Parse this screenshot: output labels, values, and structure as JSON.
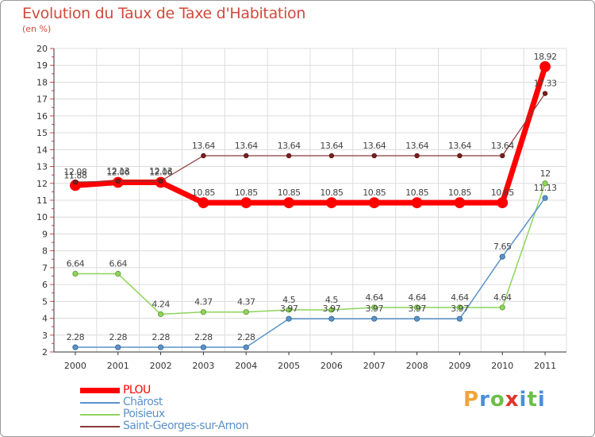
{
  "chart_data": {
    "type": "line",
    "title": "Evolution du Taux de Taxe d'Habitation",
    "subtitle": "(en %)",
    "categories": [
      "2000",
      "2001",
      "2002",
      "2003",
      "2004",
      "2005",
      "2006",
      "2007",
      "2008",
      "2009",
      "2010",
      "2011"
    ],
    "ylim": [
      2,
      20
    ],
    "yticks": [
      2,
      3,
      4,
      5,
      6,
      7,
      8,
      9,
      10,
      11,
      12,
      13,
      14,
      15,
      16,
      17,
      18,
      19,
      20
    ],
    "grid": true,
    "series": [
      {
        "name": "PLOU",
        "color": "#ff0000",
        "values": [
          11.88,
          12.06,
          12.06,
          10.85,
          10.85,
          10.85,
          10.85,
          10.85,
          10.85,
          10.85,
          10.85,
          18.92
        ],
        "labels": [
          "11.88",
          "12.06",
          "12.06",
          "10.85",
          "10.85",
          "10.85",
          "10.85",
          "10.85",
          "10.85",
          "10.85",
          "10.85",
          "18.92"
        ]
      },
      {
        "name": "Chârost",
        "color": "#5b93c9",
        "values": [
          2.28,
          2.28,
          2.28,
          2.28,
          2.28,
          3.97,
          3.97,
          3.97,
          3.97,
          3.97,
          7.65,
          11.13
        ],
        "labels": [
          "2.28",
          "2.28",
          "2.28",
          "2.28",
          "2.28",
          "3.97",
          "3.97",
          "3.97",
          "3.97",
          "3.97",
          "7.65",
          "11.13"
        ]
      },
      {
        "name": "Poisieux",
        "color": "#8ed45a",
        "values": [
          6.64,
          6.64,
          4.24,
          4.37,
          4.37,
          4.5,
          4.5,
          4.64,
          4.64,
          4.64,
          4.64,
          12
        ],
        "labels": [
          "6.64",
          "6.64",
          "4.24",
          "4.37",
          "4.37",
          "4.5",
          "4.5",
          "4.64",
          "4.64",
          "4.64",
          "4.64",
          "12"
        ]
      },
      {
        "name": "Saint-Georges-sur-Arnon",
        "color": "#8b3a3a",
        "values": [
          12.08,
          12.13,
          12.13,
          13.64,
          13.64,
          13.64,
          13.64,
          13.64,
          13.64,
          13.64,
          13.64,
          17.33
        ],
        "labels": [
          "12.08",
          "12.13",
          "12.13",
          "13.64",
          "13.64",
          "13.64",
          "13.64",
          "13.64",
          "13.64",
          "13.64",
          "13.64",
          "17.33"
        ]
      }
    ],
    "legend": [
      "PLOU",
      "Chârost",
      "Poisieux",
      "Saint-Georges-sur-Arnon"
    ]
  },
  "brand": {
    "name": "Proxiti",
    "letters": [
      "P",
      "r",
      "o",
      "x",
      "i",
      "t",
      "i"
    ],
    "colors": [
      "#f2a33a",
      "#4a90d9",
      "#6cbf4a",
      "#e0342c",
      "#4a90d9",
      "#6cbf4a",
      "#4a90d9"
    ]
  }
}
